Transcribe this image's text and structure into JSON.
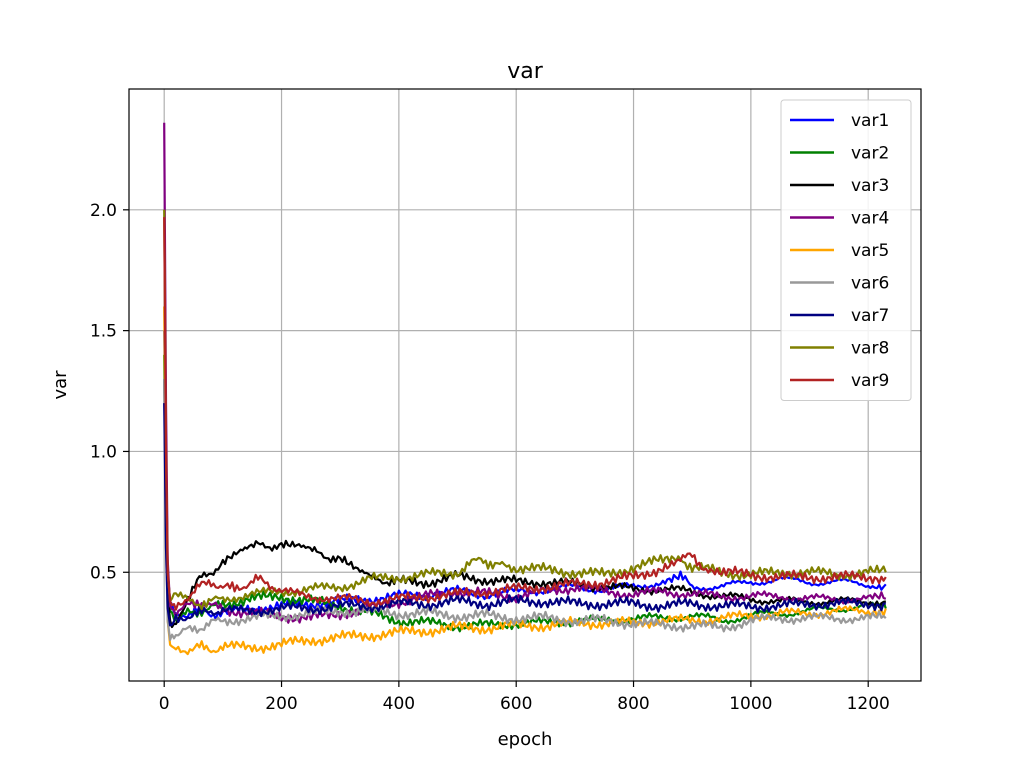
{
  "chart_data": {
    "type": "line",
    "title": "var",
    "xlabel": "epoch",
    "ylabel": "var",
    "xlim": [
      -60,
      1290
    ],
    "ylim": [
      0.05,
      2.5
    ],
    "xticks": [
      0,
      200,
      400,
      600,
      800,
      1000,
      1200
    ],
    "yticks": [
      0.5,
      1.0,
      1.5,
      2.0
    ],
    "xtick_labels": [
      "0",
      "200",
      "400",
      "600",
      "800",
      "1000",
      "1200"
    ],
    "ytick_labels": [
      "0.5",
      "1.0",
      "1.5",
      "2.0"
    ],
    "grid": true,
    "legend_position": "top-right",
    "series": [
      {
        "name": "var1",
        "color": "#0000ff",
        "x": [
          0,
          3,
          6,
          10,
          20,
          40,
          60,
          80,
          100,
          150,
          200,
          250,
          300,
          350,
          400,
          450,
          500,
          550,
          600,
          650,
          700,
          750,
          800,
          850,
          880,
          900,
          950,
          1000,
          1050,
          1100,
          1150,
          1200,
          1230
        ],
        "y": [
          1.5,
          0.9,
          0.5,
          0.38,
          0.32,
          0.33,
          0.34,
          0.33,
          0.33,
          0.35,
          0.36,
          0.37,
          0.38,
          0.39,
          0.4,
          0.41,
          0.42,
          0.41,
          0.42,
          0.43,
          0.44,
          0.43,
          0.44,
          0.46,
          0.48,
          0.44,
          0.44,
          0.46,
          0.47,
          0.46,
          0.46,
          0.45,
          0.45
        ]
      },
      {
        "name": "var2",
        "color": "#008000",
        "x": [
          0,
          3,
          6,
          10,
          20,
          40,
          60,
          80,
          100,
          150,
          200,
          250,
          300,
          350,
          400,
          450,
          500,
          550,
          600,
          650,
          700,
          750,
          800,
          850,
          900,
          950,
          1000,
          1050,
          1100,
          1150,
          1200,
          1230
        ],
        "y": [
          1.4,
          0.8,
          0.45,
          0.34,
          0.3,
          0.33,
          0.34,
          0.35,
          0.37,
          0.39,
          0.4,
          0.38,
          0.36,
          0.33,
          0.3,
          0.29,
          0.28,
          0.28,
          0.29,
          0.29,
          0.3,
          0.3,
          0.31,
          0.31,
          0.32,
          0.3,
          0.32,
          0.33,
          0.34,
          0.35,
          0.36,
          0.35
        ]
      },
      {
        "name": "var3",
        "color": "#000000",
        "x": [
          0,
          3,
          6,
          10,
          20,
          40,
          60,
          80,
          100,
          130,
          160,
          200,
          230,
          260,
          300,
          330,
          360,
          400,
          450,
          500,
          550,
          600,
          650,
          700,
          750,
          800,
          850,
          900,
          950,
          1000,
          1050,
          1100,
          1150,
          1200,
          1230
        ],
        "y": [
          1.3,
          0.7,
          0.4,
          0.3,
          0.28,
          0.4,
          0.47,
          0.5,
          0.54,
          0.58,
          0.61,
          0.61,
          0.6,
          0.58,
          0.55,
          0.5,
          0.47,
          0.46,
          0.46,
          0.48,
          0.47,
          0.46,
          0.46,
          0.45,
          0.44,
          0.43,
          0.43,
          0.42,
          0.4,
          0.39,
          0.38,
          0.38,
          0.38,
          0.38,
          0.38
        ]
      },
      {
        "name": "var4",
        "color": "#800080",
        "x": [
          0,
          3,
          6,
          10,
          20,
          40,
          60,
          80,
          100,
          150,
          200,
          250,
          300,
          350,
          400,
          450,
          500,
          550,
          600,
          650,
          700,
          750,
          800,
          850,
          900,
          950,
          1000,
          1050,
          1100,
          1150,
          1200,
          1230
        ],
        "y": [
          2.36,
          1.2,
          0.55,
          0.36,
          0.33,
          0.36,
          0.38,
          0.36,
          0.35,
          0.33,
          0.32,
          0.31,
          0.33,
          0.35,
          0.38,
          0.4,
          0.42,
          0.41,
          0.4,
          0.42,
          0.44,
          0.42,
          0.41,
          0.42,
          0.41,
          0.4,
          0.4,
          0.4,
          0.39,
          0.39,
          0.39,
          0.39
        ]
      },
      {
        "name": "var5",
        "color": "#ffa500",
        "x": [
          0,
          3,
          6,
          10,
          20,
          40,
          60,
          80,
          100,
          150,
          200,
          250,
          300,
          350,
          400,
          450,
          500,
          550,
          600,
          650,
          700,
          750,
          800,
          850,
          900,
          950,
          1000,
          1050,
          1100,
          1150,
          1200,
          1230
        ],
        "y": [
          1.6,
          0.8,
          0.3,
          0.2,
          0.18,
          0.18,
          0.19,
          0.18,
          0.19,
          0.19,
          0.2,
          0.22,
          0.23,
          0.24,
          0.25,
          0.26,
          0.27,
          0.27,
          0.28,
          0.28,
          0.29,
          0.29,
          0.29,
          0.3,
          0.3,
          0.31,
          0.32,
          0.33,
          0.33,
          0.34,
          0.34,
          0.35
        ]
      },
      {
        "name": "var6",
        "color": "#999999",
        "x": [
          0,
          3,
          6,
          10,
          20,
          40,
          60,
          80,
          100,
          150,
          200,
          250,
          300,
          350,
          400,
          450,
          500,
          550,
          600,
          650,
          700,
          750,
          800,
          850,
          900,
          950,
          1000,
          1050,
          1100,
          1150,
          1200,
          1230
        ],
        "y": [
          1.3,
          0.6,
          0.3,
          0.22,
          0.24,
          0.26,
          0.27,
          0.29,
          0.3,
          0.31,
          0.32,
          0.33,
          0.34,
          0.34,
          0.33,
          0.33,
          0.32,
          0.32,
          0.31,
          0.31,
          0.3,
          0.3,
          0.29,
          0.28,
          0.28,
          0.27,
          0.3,
          0.31,
          0.31,
          0.31,
          0.31,
          0.31
        ]
      },
      {
        "name": "var7",
        "color": "#000080",
        "x": [
          0,
          3,
          6,
          10,
          20,
          40,
          60,
          80,
          100,
          150,
          200,
          250,
          300,
          350,
          400,
          450,
          500,
          550,
          600,
          650,
          700,
          750,
          800,
          850,
          900,
          950,
          1000,
          1050,
          1100,
          1150,
          1200,
          1230
        ],
        "y": [
          1.2,
          0.6,
          0.35,
          0.28,
          0.3,
          0.32,
          0.33,
          0.34,
          0.34,
          0.34,
          0.35,
          0.35,
          0.36,
          0.36,
          0.37,
          0.37,
          0.38,
          0.37,
          0.38,
          0.38,
          0.37,
          0.37,
          0.37,
          0.36,
          0.37,
          0.36,
          0.36,
          0.36,
          0.37,
          0.37,
          0.37,
          0.37
        ]
      },
      {
        "name": "var8",
        "color": "#808000",
        "x": [
          0,
          3,
          6,
          10,
          20,
          40,
          60,
          80,
          100,
          150,
          200,
          250,
          300,
          350,
          400,
          450,
          500,
          540,
          560,
          600,
          650,
          700,
          750,
          800,
          850,
          880,
          900,
          950,
          1000,
          1050,
          1100,
          1150,
          1200,
          1230
        ],
        "y": [
          2.0,
          1.0,
          0.5,
          0.38,
          0.42,
          0.38,
          0.37,
          0.38,
          0.39,
          0.41,
          0.42,
          0.43,
          0.44,
          0.47,
          0.48,
          0.49,
          0.5,
          0.56,
          0.53,
          0.52,
          0.51,
          0.5,
          0.49,
          0.52,
          0.55,
          0.56,
          0.52,
          0.5,
          0.49,
          0.5,
          0.5,
          0.49,
          0.5,
          0.5
        ]
      },
      {
        "name": "var9",
        "color": "#b22222",
        "x": [
          0,
          3,
          6,
          10,
          20,
          40,
          60,
          80,
          100,
          120,
          140,
          160,
          180,
          200,
          250,
          300,
          350,
          400,
          450,
          500,
          550,
          600,
          650,
          700,
          750,
          800,
          850,
          880,
          900,
          920,
          950,
          1000,
          1050,
          1100,
          1150,
          1200,
          1230
        ],
        "y": [
          1.97,
          1.0,
          0.5,
          0.38,
          0.35,
          0.4,
          0.44,
          0.46,
          0.44,
          0.43,
          0.45,
          0.47,
          0.45,
          0.42,
          0.4,
          0.39,
          0.38,
          0.39,
          0.4,
          0.41,
          0.42,
          0.43,
          0.44,
          0.45,
          0.46,
          0.48,
          0.52,
          0.55,
          0.57,
          0.52,
          0.5,
          0.49,
          0.48,
          0.48,
          0.48,
          0.48,
          0.48
        ]
      }
    ]
  }
}
